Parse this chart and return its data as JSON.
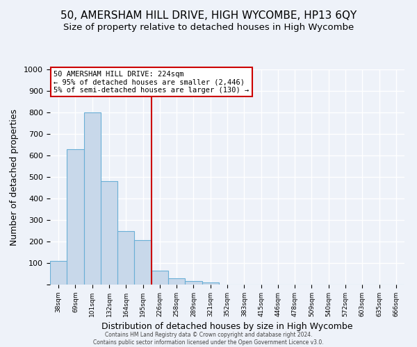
{
  "title": "50, AMERSHAM HILL DRIVE, HIGH WYCOMBE, HP13 6QY",
  "subtitle": "Size of property relative to detached houses in High Wycombe",
  "xlabel": "Distribution of detached houses by size in High Wycombe",
  "ylabel": "Number of detached properties",
  "bar_values": [
    110,
    630,
    800,
    480,
    250,
    205,
    63,
    28,
    17,
    10,
    0,
    0,
    0,
    0,
    0,
    0,
    0,
    0,
    0,
    0,
    0
  ],
  "bar_labels": [
    "38sqm",
    "69sqm",
    "101sqm",
    "132sqm",
    "164sqm",
    "195sqm",
    "226sqm",
    "258sqm",
    "289sqm",
    "321sqm",
    "352sqm",
    "383sqm",
    "415sqm",
    "446sqm",
    "478sqm",
    "509sqm",
    "540sqm",
    "572sqm",
    "603sqm",
    "635sqm",
    "666sqm"
  ],
  "bar_color": "#c8d8ea",
  "bar_edge_color": "#6aafd6",
  "vline_color": "#cc0000",
  "annotation_title": "50 AMERSHAM HILL DRIVE: 224sqm",
  "annotation_line1": "← 95% of detached houses are smaller (2,446)",
  "annotation_line2": "5% of semi-detached houses are larger (130) →",
  "annotation_box_color": "#ffffff",
  "annotation_box_edge": "#cc0000",
  "footer1": "Contains HM Land Registry data © Crown copyright and database right 2024.",
  "footer2": "Contains public sector information licensed under the Open Government Licence v3.0.",
  "ylim": [
    0,
    1000
  ],
  "yticks": [
    0,
    100,
    200,
    300,
    400,
    500,
    600,
    700,
    800,
    900,
    1000
  ],
  "background_color": "#eef2f9",
  "grid_color": "#ffffff",
  "title_fontsize": 11,
  "subtitle_fontsize": 9.5,
  "vline_bar_index": 6
}
